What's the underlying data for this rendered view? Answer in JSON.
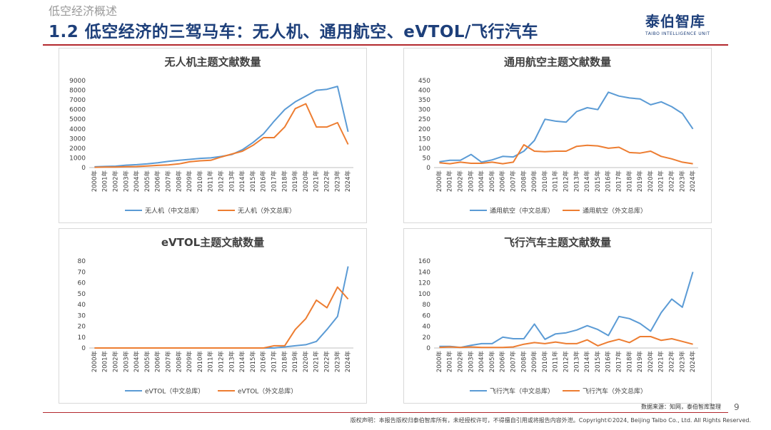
{
  "header": {
    "supertitle": "低空经济概述",
    "title": "1.2 低空经济的三驾马车：无人机、通用航空、eVTOL/飞行汽车",
    "logo_cn": "泰伯智库",
    "logo_en": "TAIBO INTELLIGENCE UNIT"
  },
  "footer": {
    "source": "数据来源：知网，泰伯智库整理",
    "page": "9",
    "copyright": "版权声明：本报告版权归泰伯智库所有，未经授权许可，不得擅自引用或将报告内容外泄。Copyright©2024, Beijing Taibo Co., Ltd. All Rights Reserved."
  },
  "colors": {
    "blue": "#5b9bd5",
    "orange": "#ed7d31",
    "accent": "#1d3f7a",
    "rule": "#b3282d"
  },
  "chart_data": [
    {
      "type": "line",
      "title": "无人机主题文献数量",
      "categories": [
        "2000年",
        "2001年",
        "2002年",
        "2003年",
        "2004年",
        "2005年",
        "2006年",
        "2007年",
        "2008年",
        "2009年",
        "2010年",
        "2011年",
        "2012年",
        "2013年",
        "2014年",
        "2015年",
        "2016年",
        "2017年",
        "2018年",
        "2019年",
        "2020年",
        "2021年",
        "2022年",
        "2023年",
        "2024年"
      ],
      "ylim": [
        0,
        9000
      ],
      "yticks": [
        0,
        1000,
        2000,
        3000,
        4000,
        5000,
        6000,
        7000,
        8000,
        9000
      ],
      "series": [
        {
          "name": "无人机（中文总库）",
          "color": "#5b9bd5",
          "values": [
            80,
            120,
            150,
            250,
            300,
            380,
            500,
            650,
            750,
            850,
            950,
            1000,
            1150,
            1350,
            1850,
            2600,
            3500,
            4800,
            6000,
            6800,
            7400,
            8000,
            8100,
            8400,
            3700
          ]
        },
        {
          "name": "无人机（外文总库）",
          "color": "#ed7d31",
          "values": [
            30,
            50,
            60,
            90,
            110,
            160,
            230,
            280,
            380,
            600,
            700,
            750,
            1100,
            1400,
            1700,
            2300,
            3100,
            3100,
            4200,
            6100,
            6600,
            4200,
            4200,
            4650,
            2400
          ]
        }
      ],
      "legend": "bottom"
    },
    {
      "type": "line",
      "title": "通用航空主题文献数量",
      "categories": [
        "2000年",
        "2001年",
        "2002年",
        "2003年",
        "2004年",
        "2005年",
        "2006年",
        "2007年",
        "2008年",
        "2009年",
        "2010年",
        "2011年",
        "2012年",
        "2013年",
        "2014年",
        "2015年",
        "2016年",
        "2017年",
        "2018年",
        "2019年",
        "2020年",
        "2021年",
        "2022年",
        "2023年",
        "2024年"
      ],
      "ylim": [
        0,
        450
      ],
      "yticks": [
        0,
        50,
        100,
        150,
        200,
        250,
        300,
        350,
        400,
        450
      ],
      "series": [
        {
          "name": "通用航空（中文总库）",
          "color": "#5b9bd5",
          "values": [
            30,
            38,
            38,
            68,
            28,
            40,
            58,
            55,
            85,
            140,
            250,
            240,
            235,
            290,
            310,
            300,
            390,
            370,
            360,
            355,
            325,
            340,
            315,
            280,
            200
          ]
        },
        {
          "name": "通用航空（外文总库）",
          "color": "#ed7d31",
          "values": [
            25,
            20,
            28,
            22,
            22,
            28,
            20,
            28,
            118,
            85,
            82,
            85,
            85,
            110,
            115,
            112,
            100,
            105,
            78,
            75,
            85,
            58,
            45,
            28,
            20
          ]
        }
      ],
      "legend": "bottom"
    },
    {
      "type": "line",
      "title": "eVTOL主题文献数量",
      "categories": [
        "2000年",
        "2001年",
        "2002年",
        "2003年",
        "2004年",
        "2005年",
        "2006年",
        "2007年",
        "2008年",
        "2009年",
        "2010年",
        "2011年",
        "2012年",
        "2013年",
        "2014年",
        "2015年",
        "2016年",
        "2017年",
        "2018年",
        "2019年",
        "2020年",
        "2021年",
        "2022年",
        "2023年",
        "2024年"
      ],
      "ylim": [
        0,
        80
      ],
      "yticks": [
        0,
        10,
        20,
        30,
        40,
        50,
        60,
        70,
        80
      ],
      "series": [
        {
          "name": "eVTOL（中文总库）",
          "color": "#5b9bd5",
          "values": [
            0,
            0,
            0,
            0,
            0,
            0,
            0,
            0,
            0,
            0,
            0,
            0,
            0,
            0,
            0,
            0,
            0,
            0,
            1,
            2,
            3,
            6,
            17,
            29,
            75
          ]
        },
        {
          "name": "eVTOL（外文总库）",
          "color": "#ed7d31",
          "values": [
            0,
            0,
            0,
            0,
            0,
            0,
            0,
            0,
            0,
            0,
            0,
            0,
            0,
            0,
            0,
            0,
            0,
            2,
            2,
            17,
            27,
            44,
            37,
            56,
            45
          ]
        }
      ],
      "legend": "bottom"
    },
    {
      "type": "line",
      "title": "飞行汽车主题文献数量",
      "categories": [
        "2000年",
        "2001年",
        "2002年",
        "2003年",
        "2004年",
        "2005年",
        "2006年",
        "2007年",
        "2008年",
        "2009年",
        "2010年",
        "2011年",
        "2012年",
        "2013年",
        "2014年",
        "2015年",
        "2016年",
        "2017年",
        "2018年",
        "2019年",
        "2020年",
        "2021年",
        "2022年",
        "2023年",
        "2024年"
      ],
      "ylim": [
        0,
        160
      ],
      "yticks": [
        0,
        20,
        40,
        60,
        80,
        100,
        120,
        140,
        160
      ],
      "series": [
        {
          "name": "飞行汽车（中文总库）",
          "color": "#5b9bd5",
          "values": [
            3,
            3,
            1,
            5,
            8,
            8,
            20,
            17,
            17,
            44,
            16,
            26,
            28,
            33,
            41,
            34,
            23,
            58,
            54,
            45,
            31,
            65,
            90,
            75,
            140
          ]
        },
        {
          "name": "飞行汽车（外文总库）",
          "color": "#ed7d31",
          "values": [
            1,
            2,
            1,
            2,
            1,
            1,
            1,
            2,
            7,
            10,
            8,
            11,
            8,
            8,
            15,
            4,
            11,
            16,
            10,
            21,
            21,
            14,
            17,
            12,
            7
          ]
        }
      ],
      "legend": "bottom"
    }
  ]
}
